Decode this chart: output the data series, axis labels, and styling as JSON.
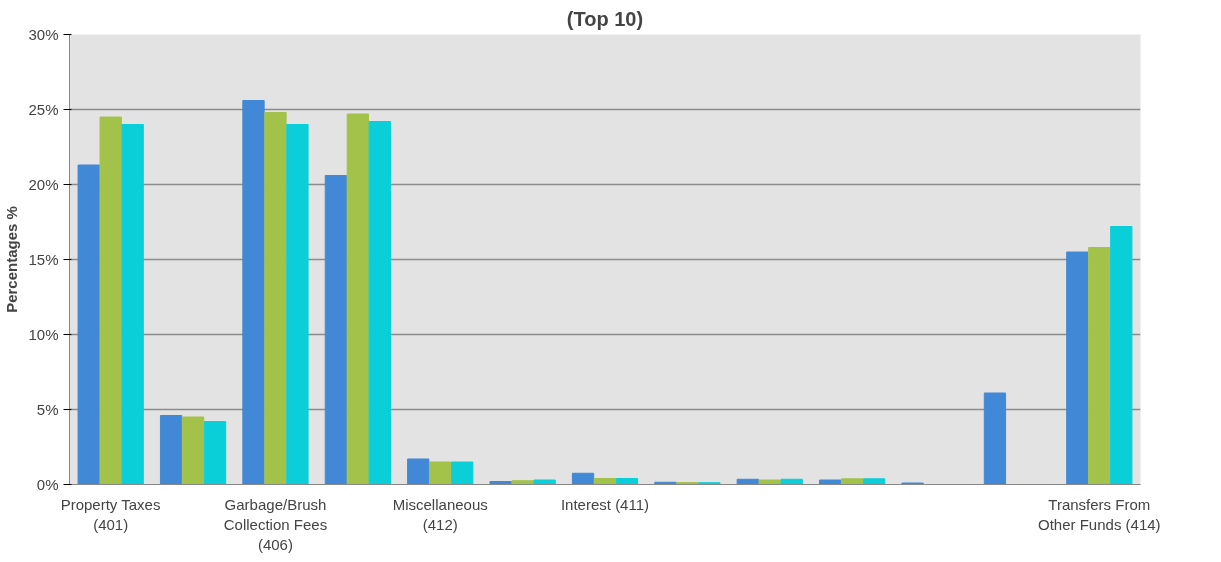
{
  "chart_data": {
    "type": "bar",
    "title": "(Top 10)",
    "ylabel": "Percentages %",
    "categories": [
      "Property Taxes (401)",
      null,
      "Garbage/Brush Collection Fees (406)",
      null,
      "Miscellaneous (412)",
      null,
      "Interest (411)",
      null,
      null,
      null,
      null,
      null,
      "Transfers From Other Funds (414)"
    ],
    "series": [
      {
        "color": "#4189d6",
        "values": [
          21.3,
          4.6,
          25.6,
          20.6,
          1.7,
          0.2,
          0.75,
          0.15,
          0.35,
          0.3,
          0.1,
          6.1,
          15.5
        ]
      },
      {
        "color": "#a3c24a",
        "values": [
          24.5,
          4.5,
          24.8,
          24.7,
          1.5,
          0.25,
          0.4,
          0.13,
          0.3,
          0.38,
          null,
          null,
          15.8
        ]
      },
      {
        "color": "#0bcfd8",
        "values": [
          24.0,
          4.2,
          24.0,
          24.2,
          1.5,
          0.3,
          0.4,
          0.12,
          0.35,
          0.38,
          null,
          null,
          17.2
        ]
      }
    ],
    "ylim": [
      0,
      30
    ],
    "yticks": [
      {
        "value": 0,
        "label": "0%"
      },
      {
        "value": 5,
        "label": "5%"
      },
      {
        "value": 10,
        "label": "10%"
      },
      {
        "value": 15,
        "label": "15%"
      },
      {
        "value": 20,
        "label": "20%"
      },
      {
        "value": 25,
        "label": "25%"
      },
      {
        "value": 30,
        "label": "30%"
      }
    ],
    "grid": "y"
  }
}
